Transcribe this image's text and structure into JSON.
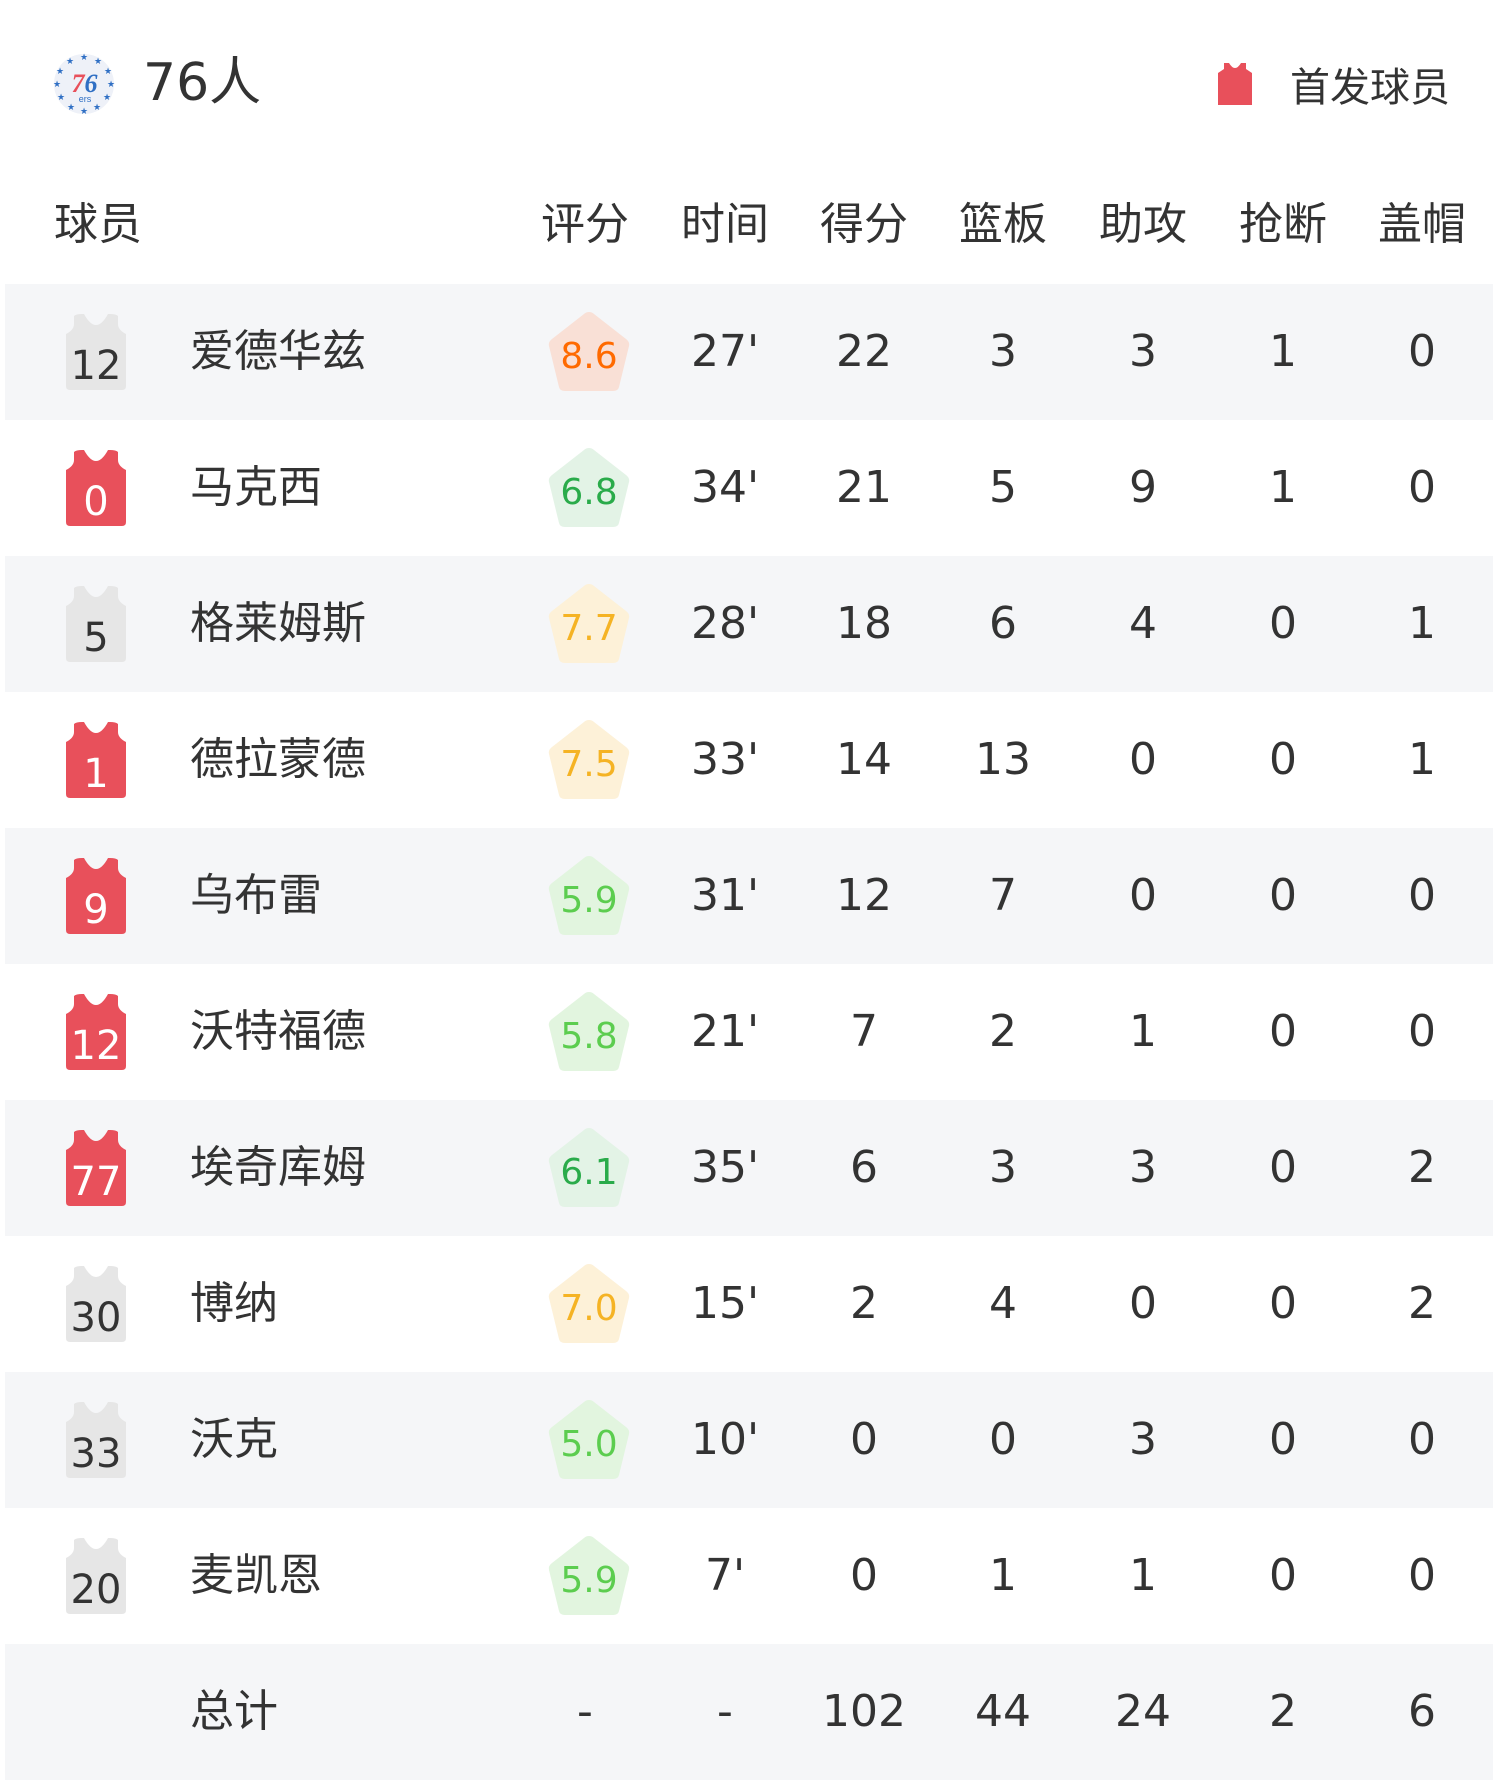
{
  "team": {
    "name": "76人",
    "logo_text": "76ers",
    "logo_icon": "76ers-logo"
  },
  "legend": {
    "label": "首发球员",
    "icon": "jersey-icon",
    "color": "#e8505b"
  },
  "colors": {
    "starter_jersey": "#e8505b",
    "bench_jersey": "#e6e6e6",
    "row_alt": "#f5f6f8"
  },
  "rating_styles": {
    "orange": {
      "text": "#ff6a00",
      "bg": "#f9e0d6"
    },
    "yellow": {
      "text": "#f5b324",
      "bg": "#fdf1d8"
    },
    "green": {
      "text": "#2aab4a",
      "bg": "#e3f3e6"
    },
    "lightgreen": {
      "text": "#5ccd4f",
      "bg": "#e2f5df"
    }
  },
  "columns": [
    "球员",
    "评分",
    "时间",
    "得分",
    "篮板",
    "助攻",
    "抢断",
    "盖帽"
  ],
  "players": [
    {
      "number": "12",
      "name": "爱德华兹",
      "starter": false,
      "rating": "8.6",
      "rating_style": "orange",
      "time": "27'",
      "points": "22",
      "rebounds": "3",
      "assists": "3",
      "steals": "1",
      "blocks": "0"
    },
    {
      "number": "0",
      "name": "马克西",
      "starter": true,
      "rating": "6.8",
      "rating_style": "green",
      "time": "34'",
      "points": "21",
      "rebounds": "5",
      "assists": "9",
      "steals": "1",
      "blocks": "0"
    },
    {
      "number": "5",
      "name": "格莱姆斯",
      "starter": false,
      "rating": "7.7",
      "rating_style": "yellow",
      "time": "28'",
      "points": "18",
      "rebounds": "6",
      "assists": "4",
      "steals": "0",
      "blocks": "1"
    },
    {
      "number": "1",
      "name": "德拉蒙德",
      "starter": true,
      "rating": "7.5",
      "rating_style": "yellow",
      "time": "33'",
      "points": "14",
      "rebounds": "13",
      "assists": "0",
      "steals": "0",
      "blocks": "1"
    },
    {
      "number": "9",
      "name": "乌布雷",
      "starter": true,
      "rating": "5.9",
      "rating_style": "lightgreen",
      "time": "31'",
      "points": "12",
      "rebounds": "7",
      "assists": "0",
      "steals": "0",
      "blocks": "0"
    },
    {
      "number": "12",
      "name": "沃特福德",
      "starter": true,
      "rating": "5.8",
      "rating_style": "lightgreen",
      "time": "21'",
      "points": "7",
      "rebounds": "2",
      "assists": "1",
      "steals": "0",
      "blocks": "0"
    },
    {
      "number": "77",
      "name": "埃奇库姆",
      "starter": true,
      "rating": "6.1",
      "rating_style": "green",
      "time": "35'",
      "points": "6",
      "rebounds": "3",
      "assists": "3",
      "steals": "0",
      "blocks": "2"
    },
    {
      "number": "30",
      "name": "博纳",
      "starter": false,
      "rating": "7.0",
      "rating_style": "yellow",
      "time": "15'",
      "points": "2",
      "rebounds": "4",
      "assists": "0",
      "steals": "0",
      "blocks": "2"
    },
    {
      "number": "33",
      "name": "沃克",
      "starter": false,
      "rating": "5.0",
      "rating_style": "lightgreen",
      "time": "10'",
      "points": "0",
      "rebounds": "0",
      "assists": "3",
      "steals": "0",
      "blocks": "0"
    },
    {
      "number": "20",
      "name": "麦凯恩",
      "starter": false,
      "rating": "5.9",
      "rating_style": "lightgreen",
      "time": "7'",
      "points": "0",
      "rebounds": "1",
      "assists": "1",
      "steals": "0",
      "blocks": "0"
    }
  ],
  "totals": {
    "label": "总计",
    "rating": "-",
    "time": "-",
    "points": "102",
    "rebounds": "44",
    "assists": "24",
    "steals": "2",
    "blocks": "6"
  }
}
